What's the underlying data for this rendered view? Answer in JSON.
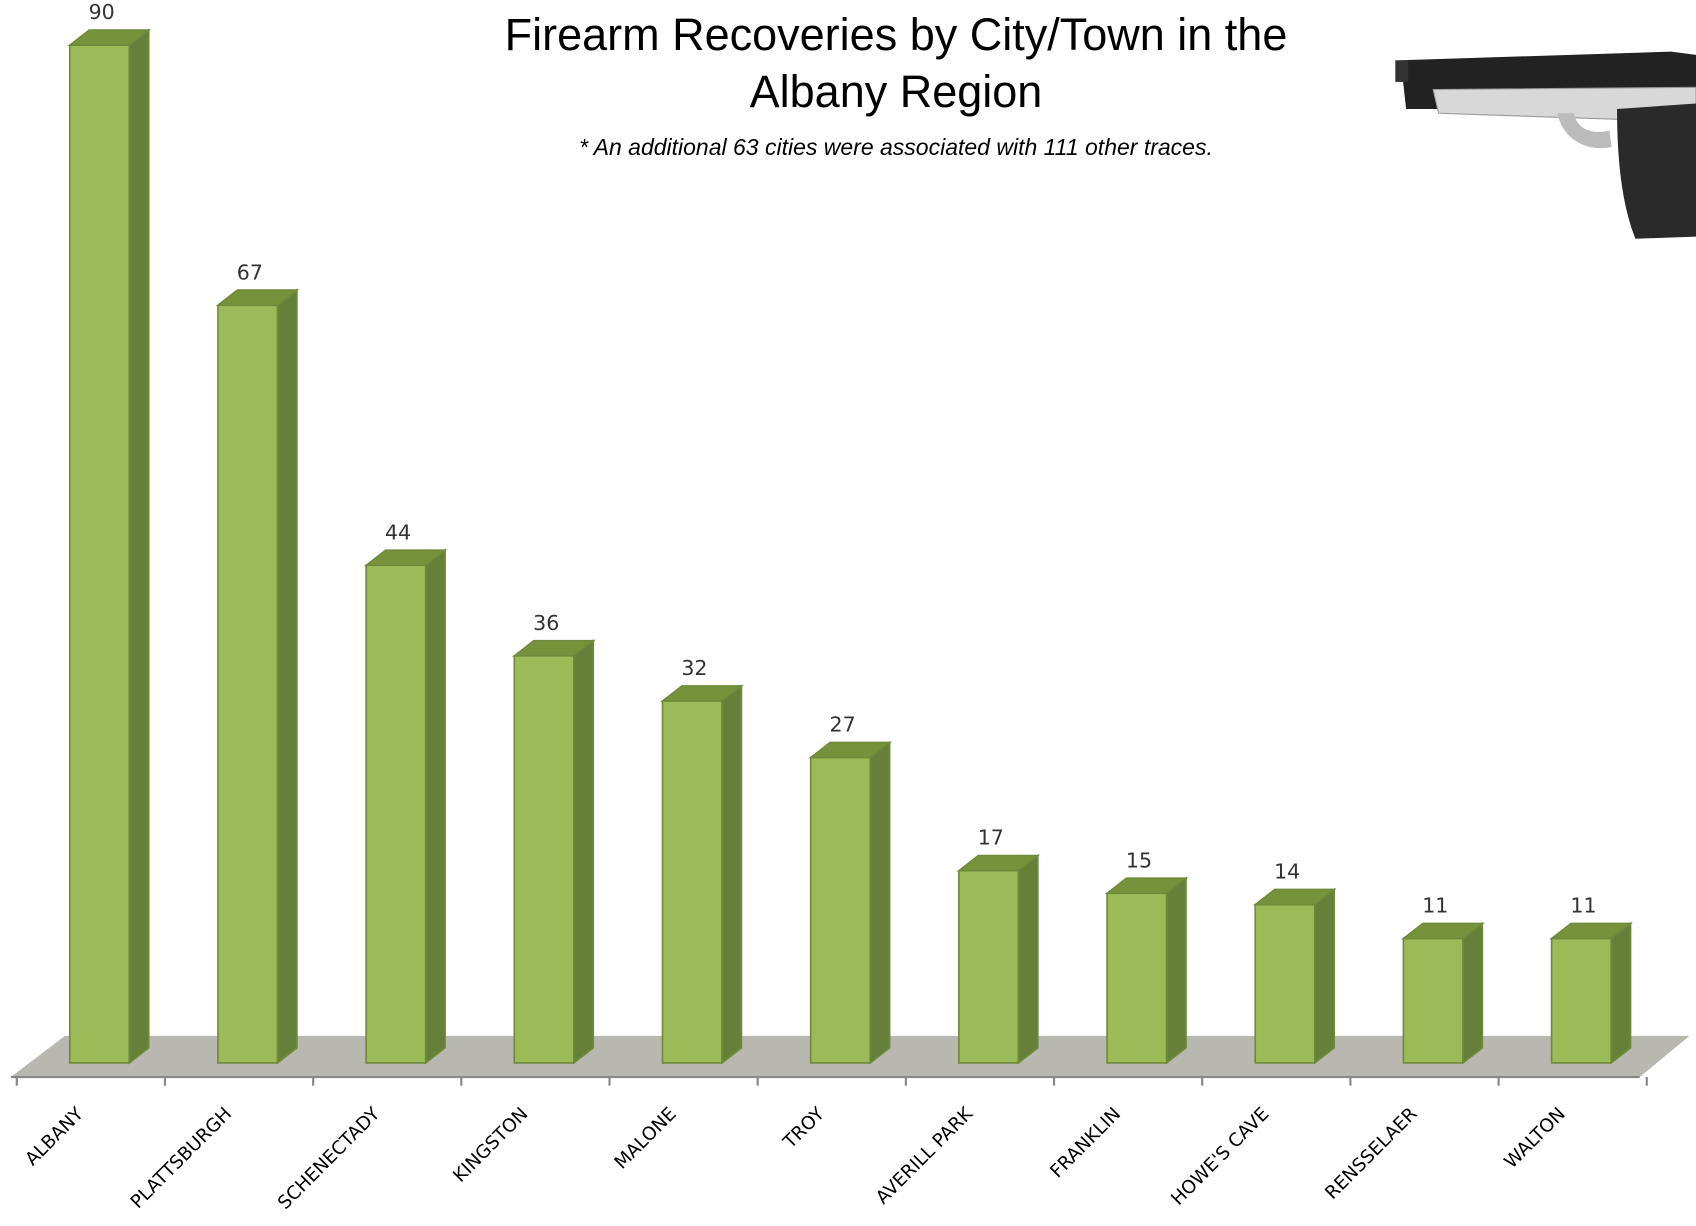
{
  "chart_data": {
    "type": "bar3d",
    "title": "Firearm Recoveries by City/Town in the Albany Region",
    "subtitle": "* An additional 63 cities were associated with 111 other traces.",
    "categories": [
      "ALBANY",
      "PLATTSBURGH",
      "SCHENECTADY",
      "KINGSTON",
      "MALONE",
      "TROY",
      "AVERILL PARK",
      "FRANKLIN",
      "HOWE'S CAVE",
      "RENSSELAER",
      "WALTON"
    ],
    "values": [
      90,
      67,
      44,
      36,
      32,
      27,
      17,
      15,
      14,
      11,
      11
    ],
    "color": "#9bbb59"
  }
}
